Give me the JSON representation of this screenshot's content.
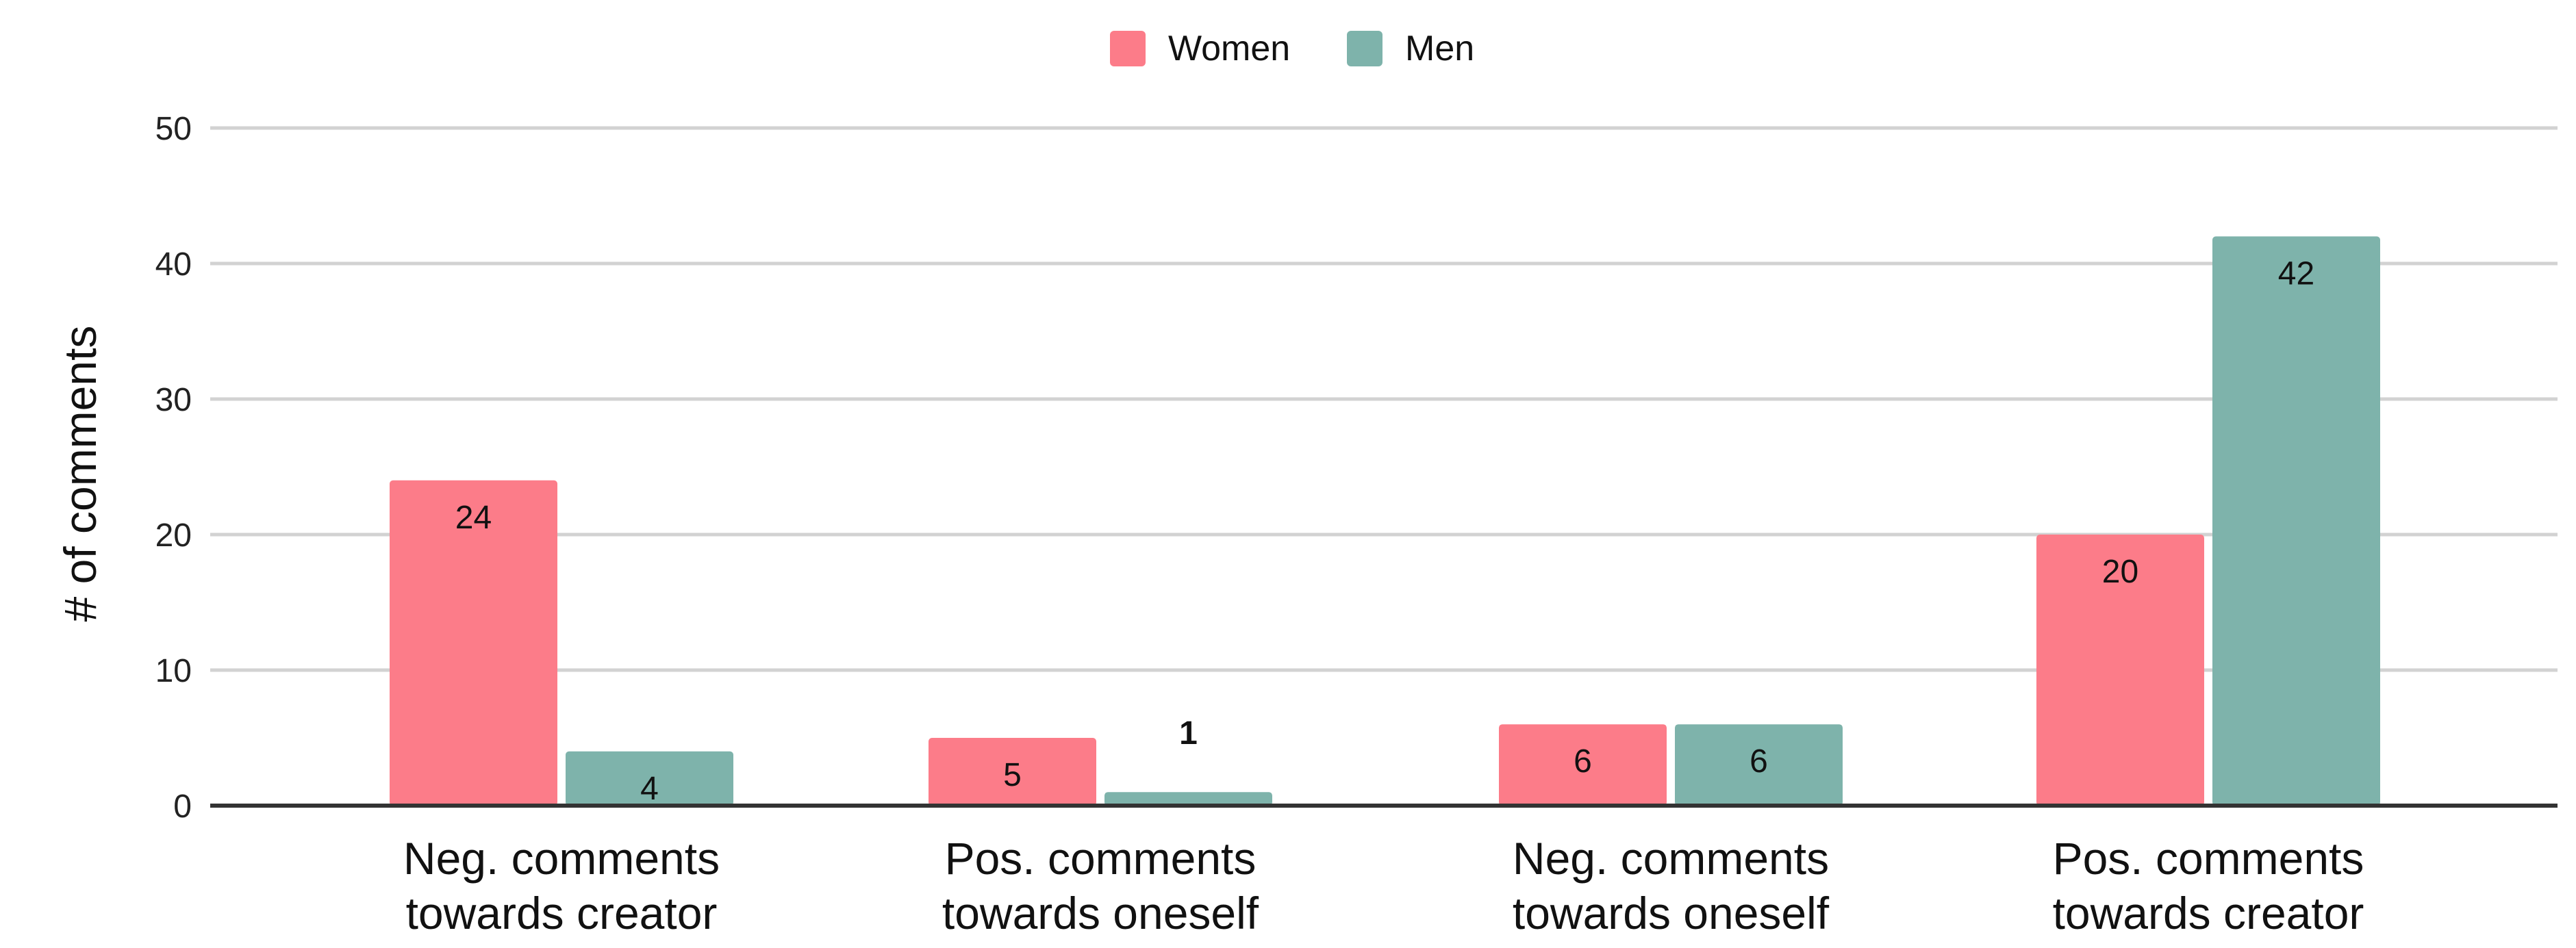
{
  "chart_data": {
    "type": "bar",
    "title": "",
    "xlabel": "",
    "ylabel": "# of comments",
    "ylim": [
      0,
      50
    ],
    "yticks": [
      0,
      10,
      20,
      30,
      40,
      50
    ],
    "grid": true,
    "legend_position": "top-center",
    "categories": [
      [
        "Neg. comments",
        "towards creator"
      ],
      [
        "Pos. comments",
        "towards oneself"
      ],
      [
        "Neg. comments",
        "towards oneself"
      ],
      [
        "Pos. comments",
        "towards creator"
      ]
    ],
    "series": [
      {
        "name": "Women",
        "color": "#fc7c89",
        "values": [
          24,
          5,
          6,
          20
        ]
      },
      {
        "name": "Men",
        "color": "#7eb3ab",
        "values": [
          4,
          1,
          6,
          42
        ]
      }
    ]
  }
}
